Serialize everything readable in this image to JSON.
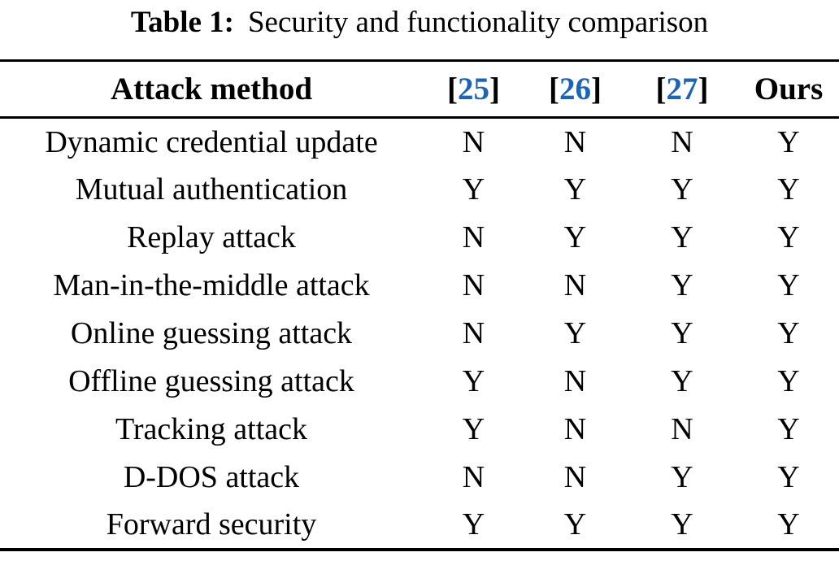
{
  "caption": {
    "label": "Table 1:",
    "text": "Security and functionality comparison"
  },
  "header": {
    "attack_method": "Attack method",
    "citations": [
      {
        "open": "[",
        "num": "25",
        "close": "]"
      },
      {
        "open": "[",
        "num": "26",
        "close": "]"
      },
      {
        "open": "[",
        "num": "27",
        "close": "]"
      }
    ],
    "ours": "Ours"
  },
  "rows": [
    {
      "label": "Dynamic credential update",
      "values": [
        "N",
        "N",
        "N",
        "Y"
      ]
    },
    {
      "label": "Mutual authentication",
      "values": [
        "Y",
        "Y",
        "Y",
        "Y"
      ]
    },
    {
      "label": "Replay attack",
      "values": [
        "N",
        "Y",
        "Y",
        "Y"
      ]
    },
    {
      "label": "Man-in-the-middle attack",
      "values": [
        "N",
        "N",
        "Y",
        "Y"
      ]
    },
    {
      "label": "Online guessing attack",
      "values": [
        "N",
        "Y",
        "Y",
        "Y"
      ]
    },
    {
      "label": "Offline guessing attack",
      "values": [
        "Y",
        "N",
        "Y",
        "Y"
      ]
    },
    {
      "label": "Tracking attack",
      "values": [
        "Y",
        "N",
        "N",
        "Y"
      ]
    },
    {
      "label": "D-DOS attack",
      "values": [
        "N",
        "N",
        "Y",
        "Y"
      ]
    },
    {
      "label": "Forward security",
      "values": [
        "Y",
        "Y",
        "Y",
        "Y"
      ]
    }
  ],
  "colors": {
    "citation_blue": "#1B64BC",
    "text": "#000000",
    "rule": "#000000",
    "background": "#FFFFFF"
  }
}
